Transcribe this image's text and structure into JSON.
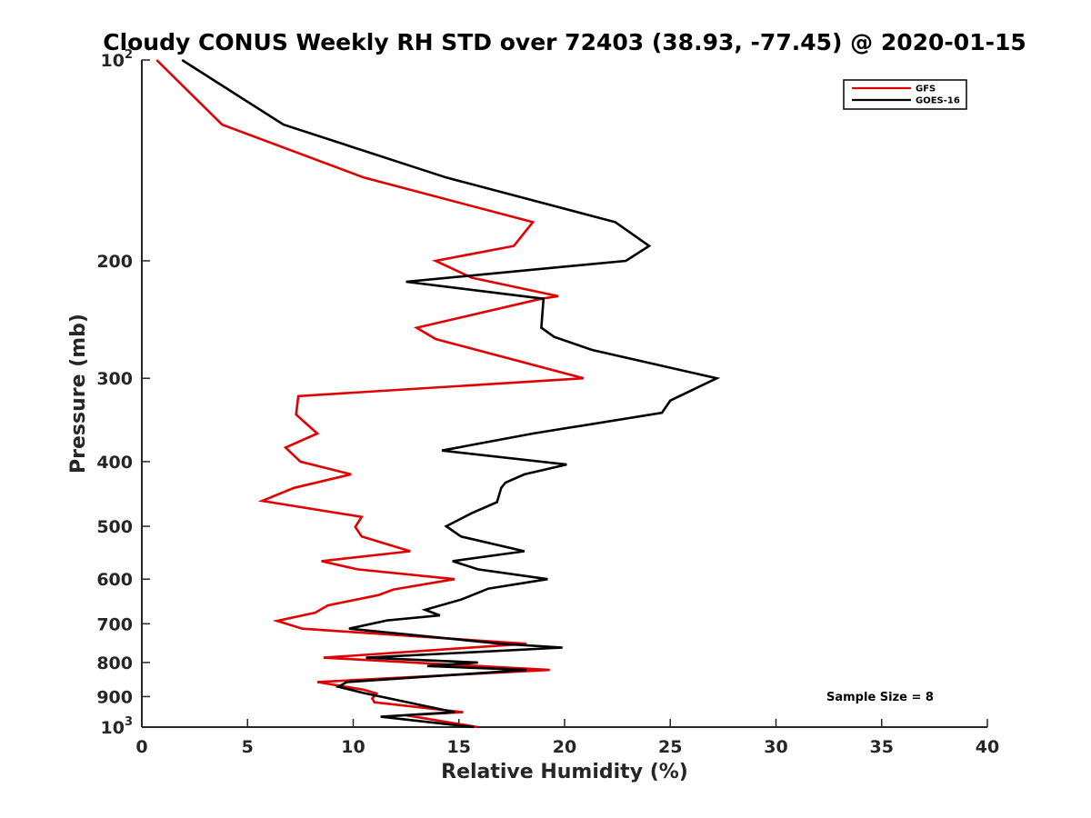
{
  "chart_data": {
    "type": "line",
    "title": "Cloudy CONUS Weekly RH STD over 72403 (38.93, -77.45) @ 2020-01-15",
    "xlabel": "Relative Humidity (%)",
    "ylabel": "Pressure (mb)",
    "xlim": [
      0,
      40
    ],
    "ylim": [
      100,
      1000
    ],
    "y_scale": "log",
    "y_reversed": true,
    "x_ticks": [
      "0",
      "5",
      "10",
      "15",
      "20",
      "25",
      "30",
      "35",
      "40"
    ],
    "y_ticks": [
      {
        "value": 100,
        "label": "10",
        "sup": "2"
      },
      {
        "value": 200,
        "label": "200",
        "sup": ""
      },
      {
        "value": 300,
        "label": "300",
        "sup": ""
      },
      {
        "value": 400,
        "label": "400",
        "sup": ""
      },
      {
        "value": 500,
        "label": "500",
        "sup": ""
      },
      {
        "value": 600,
        "label": "600",
        "sup": ""
      },
      {
        "value": 700,
        "label": "700",
        "sup": ""
      },
      {
        "value": 800,
        "label": "800",
        "sup": ""
      },
      {
        "value": 900,
        "label": "900",
        "sup": ""
      },
      {
        "value": 1000,
        "label": "10",
        "sup": "3"
      }
    ],
    "legend_position": "top-right",
    "grid": false,
    "annotation": "Sample Size = 8",
    "series": [
      {
        "name": "GFS",
        "color": "#e00000",
        "points": [
          [
            0.7,
            100
          ],
          [
            3.8,
            125
          ],
          [
            10.5,
            150
          ],
          [
            18.5,
            175
          ],
          [
            17.6,
            190
          ],
          [
            13.9,
            200
          ],
          [
            15.6,
            212
          ],
          [
            19.7,
            226
          ],
          [
            18.9,
            228
          ],
          [
            13.0,
            252
          ],
          [
            13.9,
            262
          ],
          [
            20.9,
            300
          ],
          [
            7.4,
            319
          ],
          [
            7.3,
            340
          ],
          [
            8.3,
            363
          ],
          [
            6.8,
            381
          ],
          [
            7.5,
            400
          ],
          [
            9.9,
            418
          ],
          [
            7.2,
            438
          ],
          [
            5.7,
            458
          ],
          [
            10.4,
            484
          ],
          [
            10.1,
            501
          ],
          [
            10.4,
            518
          ],
          [
            12.7,
            545
          ],
          [
            8.5,
            564
          ],
          [
            10.2,
            580
          ],
          [
            14.8,
            600
          ],
          [
            11.9,
            622
          ],
          [
            11.2,
            634
          ],
          [
            8.8,
            657
          ],
          [
            8.2,
            674
          ],
          [
            6.4,
            693
          ],
          [
            7.6,
            712
          ],
          [
            18.2,
            750
          ],
          [
            14.5,
            764
          ],
          [
            8.6,
            787
          ],
          [
            19.3,
            821
          ],
          [
            8.3,
            856
          ],
          [
            10.5,
            879
          ],
          [
            11.1,
            890
          ],
          [
            10.9,
            906
          ],
          [
            11.0,
            918
          ],
          [
            15.2,
            950
          ],
          [
            12.5,
            960
          ],
          [
            15.9,
            1000
          ]
        ]
      },
      {
        "name": "GOES-16",
        "color": "#000000",
        "points": [
          [
            1.9,
            100
          ],
          [
            6.7,
            125
          ],
          [
            14.4,
            150
          ],
          [
            22.4,
            175
          ],
          [
            24.0,
            190
          ],
          [
            22.9,
            200
          ],
          [
            12.5,
            215
          ],
          [
            19.0,
            228
          ],
          [
            18.9,
            252
          ],
          [
            19.5,
            260
          ],
          [
            21.3,
            272
          ],
          [
            27.2,
            300
          ],
          [
            25.0,
            324
          ],
          [
            24.6,
            338
          ],
          [
            18.5,
            363
          ],
          [
            14.2,
            385
          ],
          [
            20.1,
            404
          ],
          [
            18.1,
            418
          ],
          [
            17.2,
            430
          ],
          [
            17.0,
            438
          ],
          [
            16.8,
            460
          ],
          [
            15.6,
            478
          ],
          [
            14.4,
            500
          ],
          [
            15.1,
            518
          ],
          [
            18.1,
            545
          ],
          [
            14.7,
            564
          ],
          [
            15.9,
            580
          ],
          [
            19.2,
            600
          ],
          [
            16.4,
            620
          ],
          [
            15.1,
            644
          ],
          [
            13.4,
            667
          ],
          [
            14.1,
            680
          ],
          [
            11.6,
            692
          ],
          [
            9.8,
            712
          ],
          [
            17.0,
            750
          ],
          [
            19.9,
            760
          ],
          [
            10.6,
            787
          ],
          [
            15.9,
            800
          ],
          [
            13.5,
            810
          ],
          [
            18.2,
            821
          ],
          [
            9.7,
            856
          ],
          [
            9.3,
            870
          ],
          [
            10.5,
            889
          ],
          [
            14.8,
            950
          ],
          [
            11.3,
            965
          ],
          [
            15.7,
            1000
          ]
        ]
      }
    ]
  }
}
